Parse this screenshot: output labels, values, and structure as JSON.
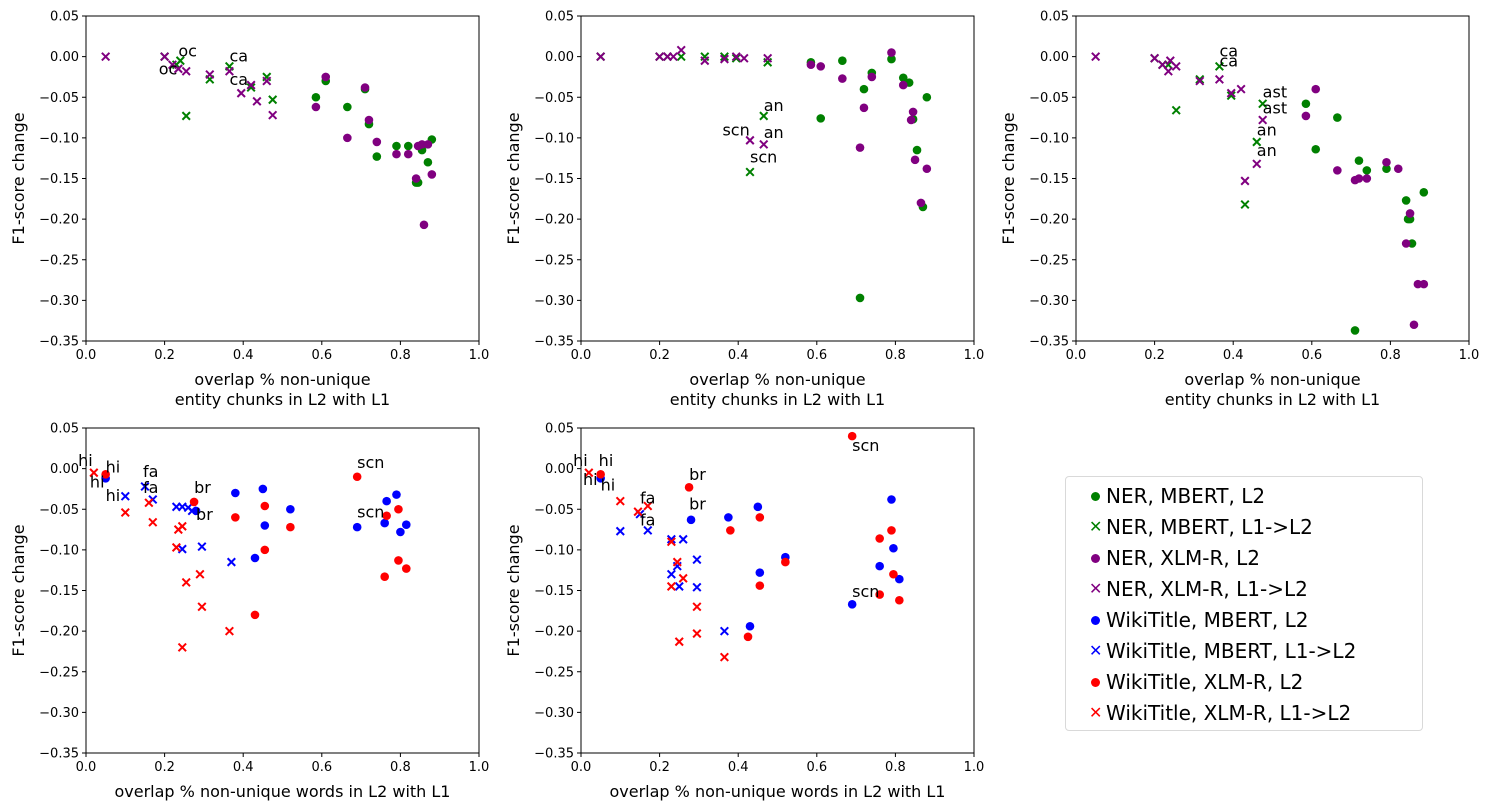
{
  "colors": {
    "MBERT_NER": "#008000",
    "XLMR_NER": "#800080",
    "MBERT_WIKI": "#0000ff",
    "XLMR_WIKI": "#ff0000"
  },
  "legend": {
    "entries": [
      {
        "label": "NER, MBERT, L2",
        "marker": "circle",
        "color": "#008000"
      },
      {
        "label": "NER, MBERT, L1->L2",
        "marker": "x",
        "color": "#008000"
      },
      {
        "label": "NER, XLM-R, L2",
        "marker": "circle",
        "color": "#800080"
      },
      {
        "label": "NER, XLM-R, L1->L2",
        "marker": "x",
        "color": "#800080"
      },
      {
        "label": "WikiTitle, MBERT, L2",
        "marker": "circle",
        "color": "#0000ff"
      },
      {
        "label": "WikiTitle, MBERT, L1->L2",
        "marker": "x",
        "color": "#0000ff"
      },
      {
        "label": "WikiTitle, XLM-R, L2",
        "marker": "circle",
        "color": "#ff0000"
      },
      {
        "label": "WikiTitle, XLM-R, L1->L2",
        "marker": "x",
        "color": "#ff0000"
      }
    ],
    "placement": "right"
  },
  "chart_data": [
    {
      "type": "scatter",
      "xlabel": "overlap % non-unique\nentity chunks in L2 with L1",
      "ylabel": "F1-score change",
      "xlim": [
        0,
        1
      ],
      "ylim": [
        -0.35,
        0.05
      ],
      "xticks": [
        "0.0",
        "0.2",
        "0.4",
        "0.6",
        "0.8",
        "1.0"
      ],
      "yticks": [
        "0.05",
        "0.00",
        "−0.05",
        "−0.10",
        "−0.15",
        "−0.20",
        "−0.25",
        "−0.30",
        "−0.35"
      ],
      "series": [
        {
          "name": "NER, MBERT, L2",
          "marker": "circle",
          "color": "#008000",
          "x": [
            0.585,
            0.61,
            0.665,
            0.71,
            0.72,
            0.74,
            0.79,
            0.82,
            0.84,
            0.845,
            0.855,
            0.87,
            0.88
          ],
          "y": [
            -0.05,
            -0.03,
            -0.062,
            -0.04,
            -0.083,
            -0.123,
            -0.11,
            -0.11,
            -0.155,
            -0.155,
            -0.115,
            -0.13,
            -0.102
          ]
        },
        {
          "name": "NER, MBERT, L1->L2",
          "marker": "x",
          "color": "#008000",
          "x": [
            0.2,
            0.23,
            0.24,
            0.255,
            0.315,
            0.365,
            0.42,
            0.46,
            0.475
          ],
          "y": [
            0.0,
            -0.01,
            -0.005,
            -0.073,
            -0.028,
            -0.012,
            -0.038,
            -0.025,
            -0.053
          ]
        },
        {
          "name": "NER, XLM-R, L2",
          "marker": "circle",
          "color": "#800080",
          "x": [
            0.585,
            0.61,
            0.665,
            0.71,
            0.72,
            0.74,
            0.79,
            0.82,
            0.84,
            0.845,
            0.855,
            0.87,
            0.88,
            0.86
          ],
          "y": [
            -0.062,
            -0.025,
            -0.1,
            -0.038,
            -0.078,
            -0.105,
            -0.12,
            -0.12,
            -0.15,
            -0.11,
            -0.108,
            -0.108,
            -0.145,
            -0.207
          ]
        },
        {
          "name": "NER, XLM-R, L1->L2",
          "marker": "x",
          "color": "#800080",
          "x": [
            0.05,
            0.2,
            0.22,
            0.235,
            0.255,
            0.315,
            0.365,
            0.395,
            0.42,
            0.435,
            0.46,
            0.475
          ],
          "y": [
            0.0,
            0.0,
            -0.01,
            -0.015,
            -0.018,
            -0.022,
            -0.018,
            -0.045,
            -0.035,
            -0.055,
            -0.03,
            -0.072
          ]
        }
      ],
      "annotations": [
        {
          "text": "oc",
          "x": 0.235,
          "y": -0.0
        },
        {
          "text": "oc",
          "x": 0.185,
          "y": -0.022
        },
        {
          "text": "ca",
          "x": 0.365,
          "y": -0.006
        },
        {
          "text": "ca",
          "x": 0.365,
          "y": -0.035
        }
      ]
    },
    {
      "type": "scatter",
      "xlabel": "overlap % non-unique\nentity chunks in L2 with L1",
      "ylabel": "F1-score change",
      "xlim": [
        0,
        1
      ],
      "ylim": [
        -0.35,
        0.05
      ],
      "xticks": [
        "0.0",
        "0.2",
        "0.4",
        "0.6",
        "0.8",
        "1.0"
      ],
      "yticks": [
        "0.05",
        "0.00",
        "−0.05",
        "−0.10",
        "−0.15",
        "−0.20",
        "−0.25",
        "−0.30",
        "−0.35"
      ],
      "series": [
        {
          "name": "NER, MBERT, L2",
          "marker": "circle",
          "color": "#008000",
          "x": [
            0.585,
            0.61,
            0.665,
            0.71,
            0.72,
            0.74,
            0.79,
            0.82,
            0.835,
            0.845,
            0.855,
            0.87,
            0.88
          ],
          "y": [
            -0.007,
            -0.076,
            -0.005,
            -0.297,
            -0.04,
            -0.02,
            -0.003,
            -0.026,
            -0.032,
            -0.077,
            -0.115,
            -0.185,
            -0.05
          ]
        },
        {
          "name": "NER, MBERT, L1->L2",
          "marker": "x",
          "color": "#008000",
          "x": [
            0.05,
            0.2,
            0.22,
            0.255,
            0.315,
            0.365,
            0.395,
            0.465,
            0.475,
            0.43
          ],
          "y": [
            0.0,
            0.0,
            0.0,
            0.0,
            0.0,
            0.0,
            -0.002,
            -0.073,
            -0.007,
            -0.142
          ]
        },
        {
          "name": "NER, XLM-R, L2",
          "marker": "circle",
          "color": "#800080",
          "x": [
            0.585,
            0.61,
            0.665,
            0.71,
            0.72,
            0.74,
            0.79,
            0.82,
            0.84,
            0.845,
            0.85,
            0.865,
            0.88
          ],
          "y": [
            -0.01,
            -0.012,
            -0.027,
            -0.112,
            -0.063,
            -0.025,
            0.005,
            -0.035,
            -0.078,
            -0.068,
            -0.127,
            -0.18,
            -0.138
          ]
        },
        {
          "name": "NER, XLM-R, L1->L2",
          "marker": "x",
          "color": "#800080",
          "x": [
            0.05,
            0.2,
            0.22,
            0.235,
            0.255,
            0.315,
            0.365,
            0.395,
            0.415,
            0.43,
            0.465,
            0.475
          ],
          "y": [
            0.0,
            0.0,
            0.0,
            0.0,
            0.008,
            -0.005,
            -0.003,
            0.0,
            -0.002,
            -0.103,
            -0.108,
            -0.002
          ]
        }
      ],
      "annotations": [
        {
          "text": "an",
          "x": 0.465,
          "y": -0.067
        },
        {
          "text": "scn",
          "x": 0.36,
          "y": -0.097
        },
        {
          "text": "an",
          "x": 0.465,
          "y": -0.1
        },
        {
          "text": "scn",
          "x": 0.43,
          "y": -0.13
        }
      ]
    },
    {
      "type": "scatter",
      "xlabel": "overlap % non-unique\nentity chunks in L2 with L1",
      "ylabel": "F1-score change",
      "xlim": [
        0,
        1
      ],
      "ylim": [
        -0.35,
        0.05
      ],
      "xticks": [
        "0.0",
        "0.2",
        "0.4",
        "0.6",
        "0.8",
        "1.0"
      ],
      "yticks": [
        "0.05",
        "0.00",
        "−0.05",
        "−0.10",
        "−0.15",
        "−0.20",
        "−0.25",
        "−0.30",
        "−0.35"
      ],
      "series": [
        {
          "name": "NER, MBERT, L2",
          "marker": "circle",
          "color": "#008000",
          "x": [
            0.585,
            0.61,
            0.665,
            0.72,
            0.74,
            0.79,
            0.84,
            0.845,
            0.85,
            0.855,
            0.885,
            0.71
          ],
          "y": [
            -0.058,
            -0.114,
            -0.075,
            -0.128,
            -0.14,
            -0.138,
            -0.177,
            -0.2,
            -0.2,
            -0.23,
            -0.167,
            -0.337
          ]
        },
        {
          "name": "NER, MBERT, L1->L2",
          "marker": "x",
          "color": "#008000",
          "x": [
            0.2,
            0.22,
            0.235,
            0.255,
            0.315,
            0.365,
            0.395,
            0.43,
            0.46,
            0.475
          ],
          "y": [
            -0.002,
            -0.01,
            -0.01,
            -0.066,
            -0.028,
            -0.012,
            -0.048,
            -0.182,
            -0.105,
            -0.058
          ]
        },
        {
          "name": "NER, XLM-R, L2",
          "marker": "circle",
          "color": "#800080",
          "x": [
            0.585,
            0.61,
            0.665,
            0.71,
            0.72,
            0.74,
            0.79,
            0.82,
            0.84,
            0.85,
            0.86,
            0.87,
            0.885
          ],
          "y": [
            -0.073,
            -0.04,
            -0.14,
            -0.152,
            -0.15,
            -0.15,
            -0.13,
            -0.138,
            -0.23,
            -0.193,
            -0.33,
            -0.28,
            -0.28
          ]
        },
        {
          "name": "NER, XLM-R, L1->L2",
          "marker": "x",
          "color": "#800080",
          "x": [
            0.05,
            0.2,
            0.22,
            0.235,
            0.24,
            0.255,
            0.315,
            0.365,
            0.395,
            0.42,
            0.43,
            0.46,
            0.475
          ],
          "y": [
            0.0,
            -0.002,
            -0.01,
            -0.018,
            -0.005,
            -0.012,
            -0.03,
            -0.028,
            -0.045,
            -0.04,
            -0.153,
            -0.132,
            -0.078
          ]
        }
      ],
      "annotations": [
        {
          "text": "ca",
          "x": 0.365,
          "y": -0.0
        },
        {
          "text": "ca",
          "x": 0.365,
          "y": -0.012
        },
        {
          "text": "ast",
          "x": 0.475,
          "y": -0.05
        },
        {
          "text": "ast",
          "x": 0.475,
          "y": -0.07
        },
        {
          "text": "an",
          "x": 0.46,
          "y": -0.097
        },
        {
          "text": "an",
          "x": 0.46,
          "y": -0.122
        }
      ]
    },
    {
      "type": "scatter",
      "xlabel": "overlap % non-unique words in L2 with L1",
      "ylabel": "F1-score change",
      "xlim": [
        0,
        1
      ],
      "ylim": [
        -0.35,
        0.05
      ],
      "xticks": [
        "0.0",
        "0.2",
        "0.4",
        "0.6",
        "0.8",
        "1.0"
      ],
      "yticks": [
        "0.05",
        "0.00",
        "−0.05",
        "−0.10",
        "−0.15",
        "−0.20",
        "−0.25",
        "−0.30",
        "−0.35"
      ],
      "series": [
        {
          "name": "WikiTitle, MBERT, L2",
          "marker": "circle",
          "color": "#0000ff",
          "x": [
            0.05,
            0.28,
            0.38,
            0.43,
            0.45,
            0.455,
            0.52,
            0.69,
            0.76,
            0.765,
            0.79,
            0.8,
            0.815
          ],
          "y": [
            -0.012,
            -0.052,
            -0.03,
            -0.11,
            -0.025,
            -0.07,
            -0.05,
            -0.072,
            -0.067,
            -0.04,
            -0.032,
            -0.078,
            -0.069
          ]
        },
        {
          "name": "WikiTitle, MBERT, L1->L2",
          "marker": "x",
          "color": "#0000ff",
          "x": [
            0.1,
            0.15,
            0.17,
            0.23,
            0.245,
            0.26,
            0.27,
            0.295,
            0.37,
            0.245
          ],
          "y": [
            -0.034,
            -0.022,
            -0.038,
            -0.047,
            -0.047,
            -0.048,
            -0.052,
            -0.096,
            -0.115,
            -0.099
          ]
        },
        {
          "name": "WikiTitle, XLM-R, L2",
          "marker": "circle",
          "color": "#ff0000",
          "x": [
            0.05,
            0.275,
            0.38,
            0.43,
            0.455,
            0.455,
            0.52,
            0.69,
            0.76,
            0.765,
            0.795,
            0.795,
            0.815
          ],
          "y": [
            -0.007,
            -0.041,
            -0.06,
            -0.18,
            -0.046,
            -0.1,
            -0.072,
            -0.01,
            -0.133,
            -0.058,
            -0.05,
            -0.113,
            -0.123
          ]
        },
        {
          "name": "WikiTitle, XLM-R, L1->L2",
          "marker": "x",
          "color": "#ff0000",
          "x": [
            0.02,
            0.1,
            0.16,
            0.17,
            0.23,
            0.235,
            0.245,
            0.255,
            0.29,
            0.295,
            0.365,
            0.245
          ],
          "y": [
            -0.005,
            -0.054,
            -0.042,
            -0.066,
            -0.097,
            -0.075,
            -0.071,
            -0.14,
            -0.13,
            -0.17,
            -0.2,
            -0.22
          ]
        }
      ],
      "annotations": [
        {
          "text": "hi",
          "x": -0.02,
          "y": 0.003
        },
        {
          "text": "hi",
          "x": 0.05,
          "y": -0.005
        },
        {
          "text": "hi",
          "x": 0.01,
          "y": -0.023
        },
        {
          "text": "hi",
          "x": 0.05,
          "y": -0.04
        },
        {
          "text": "fa",
          "x": 0.145,
          "y": -0.01
        },
        {
          "text": "fa",
          "x": 0.145,
          "y": -0.03
        },
        {
          "text": "br",
          "x": 0.275,
          "y": -0.03
        },
        {
          "text": "br",
          "x": 0.28,
          "y": -0.063
        },
        {
          "text": "scn",
          "x": 0.69,
          "y": 0.001
        },
        {
          "text": "scn",
          "x": 0.69,
          "y": -0.06
        }
      ]
    },
    {
      "type": "scatter",
      "xlabel": "overlap % non-unique words in L2 with L1",
      "ylabel": "F1-score change",
      "xlim": [
        0,
        1
      ],
      "ylim": [
        -0.35,
        0.05
      ],
      "xticks": [
        "0.0",
        "0.2",
        "0.4",
        "0.6",
        "0.8",
        "1.0"
      ],
      "yticks": [
        "0.05",
        "0.00",
        "−0.05",
        "−0.10",
        "−0.15",
        "−0.20",
        "−0.25",
        "−0.30",
        "−0.35"
      ],
      "series": [
        {
          "name": "WikiTitle, MBERT, L2",
          "marker": "circle",
          "color": "#0000ff",
          "x": [
            0.05,
            0.28,
            0.375,
            0.43,
            0.45,
            0.455,
            0.52,
            0.69,
            0.76,
            0.79,
            0.795,
            0.81
          ],
          "y": [
            -0.012,
            -0.063,
            -0.06,
            -0.194,
            -0.047,
            -0.128,
            -0.109,
            -0.167,
            -0.12,
            -0.038,
            -0.098,
            -0.136
          ]
        },
        {
          "name": "WikiTitle, MBERT, L1->L2",
          "marker": "x",
          "color": "#0000ff",
          "x": [
            0.1,
            0.15,
            0.17,
            0.23,
            0.23,
            0.245,
            0.26,
            0.295,
            0.295,
            0.365,
            0.25
          ],
          "y": [
            -0.077,
            -0.056,
            -0.076,
            -0.087,
            -0.13,
            -0.12,
            -0.087,
            -0.112,
            -0.146,
            -0.2,
            -0.145
          ]
        },
        {
          "name": "WikiTitle, XLM-R, L2",
          "marker": "circle",
          "color": "#ff0000",
          "x": [
            0.05,
            0.275,
            0.38,
            0.425,
            0.455,
            0.455,
            0.52,
            0.69,
            0.76,
            0.76,
            0.79,
            0.795,
            0.81
          ],
          "y": [
            -0.007,
            -0.023,
            -0.076,
            -0.207,
            -0.06,
            -0.144,
            -0.115,
            0.04,
            -0.086,
            -0.155,
            -0.076,
            -0.13,
            -0.162
          ]
        },
        {
          "name": "WikiTitle, XLM-R, L1->L2",
          "marker": "x",
          "color": "#ff0000",
          "x": [
            0.02,
            0.1,
            0.145,
            0.17,
            0.23,
            0.23,
            0.245,
            0.26,
            0.295,
            0.295,
            0.365,
            0.25
          ],
          "y": [
            -0.005,
            -0.04,
            -0.053,
            -0.046,
            -0.09,
            -0.145,
            -0.115,
            -0.135,
            -0.17,
            -0.203,
            -0.232,
            -0.213
          ]
        }
      ],
      "annotations": [
        {
          "text": "hi",
          "x": -0.02,
          "y": 0.003
        },
        {
          "text": "hi",
          "x": 0.045,
          "y": 0.003
        },
        {
          "text": "hi",
          "x": 0.005,
          "y": -0.02
        },
        {
          "text": "hi",
          "x": 0.05,
          "y": -0.027
        },
        {
          "text": "fa",
          "x": 0.15,
          "y": -0.043
        },
        {
          "text": "fa",
          "x": 0.15,
          "y": -0.07
        },
        {
          "text": "br",
          "x": 0.275,
          "y": -0.014
        },
        {
          "text": "br",
          "x": 0.275,
          "y": -0.05
        },
        {
          "text": "scn",
          "x": 0.69,
          "y": 0.022
        },
        {
          "text": "scn",
          "x": 0.69,
          "y": -0.158
        }
      ]
    }
  ]
}
